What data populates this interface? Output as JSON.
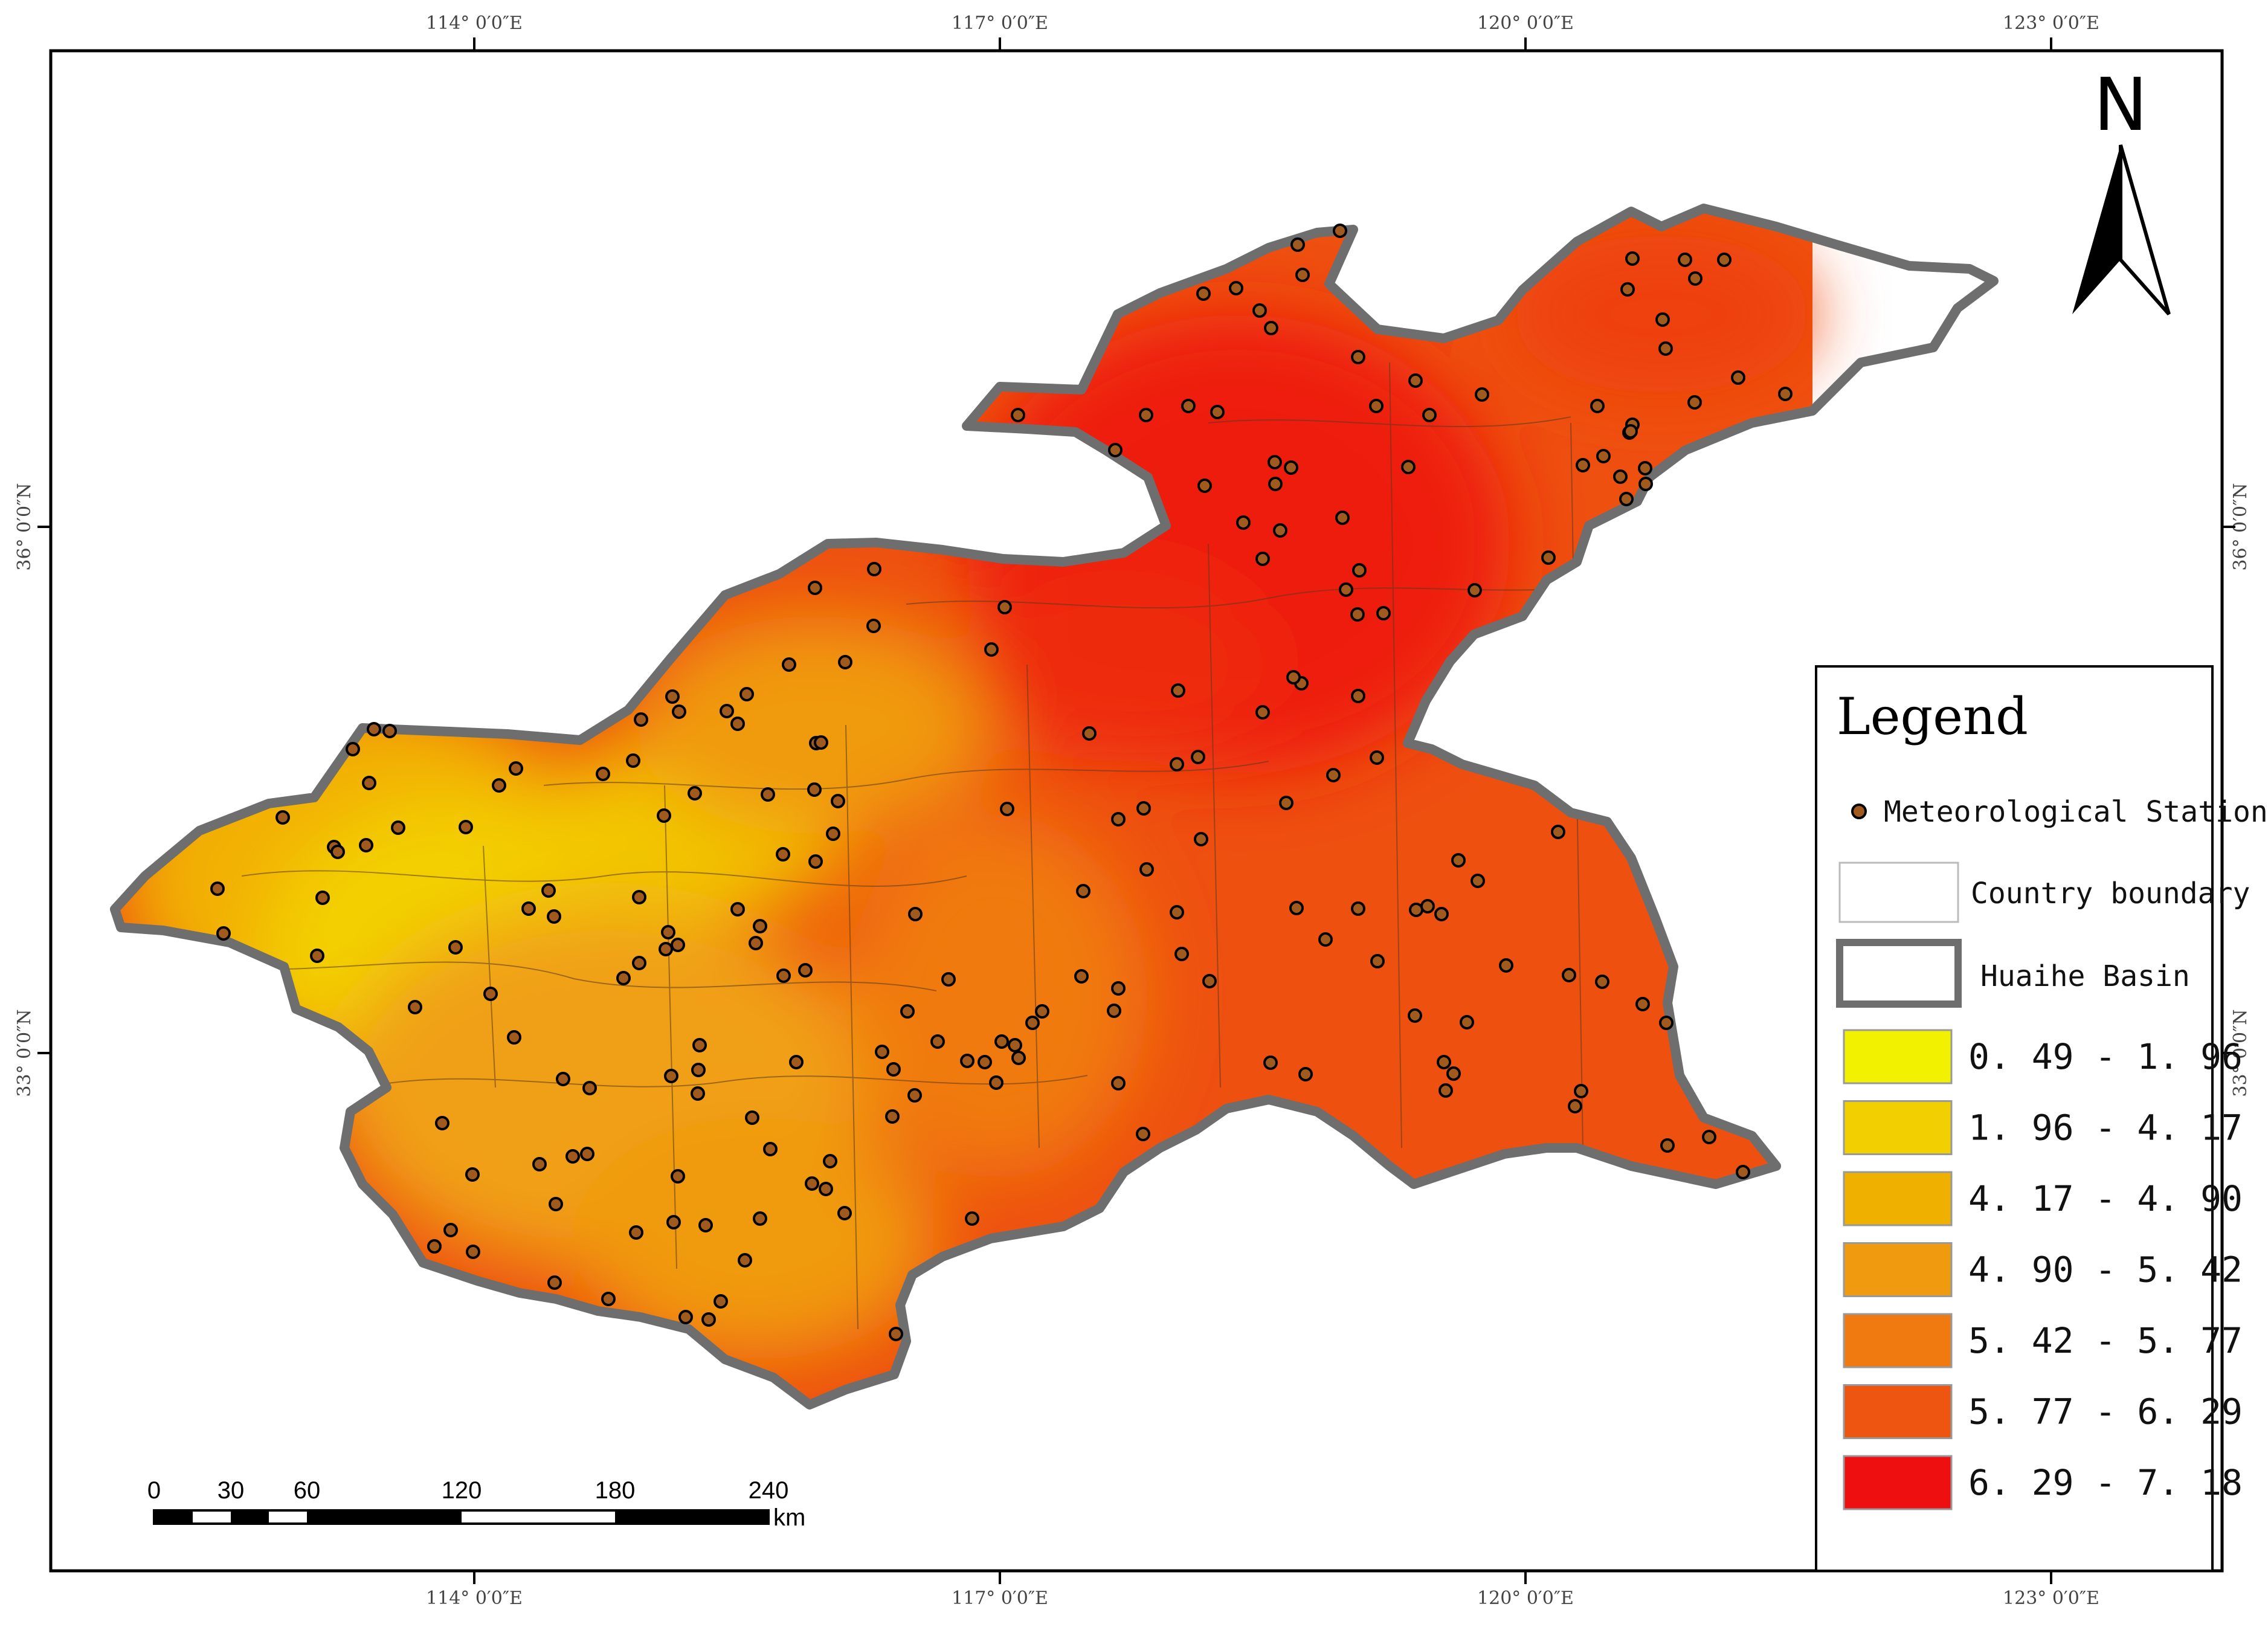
{
  "map": {
    "top_longitudes": [
      "114° 0′0″E",
      "117° 0′0″E",
      "120° 0′0″E",
      "123° 0′0″E"
    ],
    "bottom_longitudes": [
      "114° 0′0″E",
      "117° 0′0″E",
      "120° 0′0″E",
      "123° 0′0″E"
    ],
    "left_latitudes": [
      "36° 0′0″N",
      "33° 0′0″N"
    ],
    "right_latitudes": [
      "36° 0′0″N",
      "33° 0′0″N"
    ],
    "north_label": "N",
    "station_count": 214
  },
  "scale_bar": {
    "ticks": [
      "0",
      "30",
      "60",
      "120",
      "180",
      "240"
    ],
    "unit": "km"
  },
  "legend": {
    "title": "Legend",
    "station_label": "Meteorological Station",
    "country_label": "Country boundary",
    "basin_label": "Huaihe Basin",
    "classes": [
      {
        "range": "0. 49 - 1. 96",
        "color": "#f2f200"
      },
      {
        "range": "1. 96 - 4. 17",
        "color": "#f2cf00"
      },
      {
        "range": "4. 17 - 4. 90",
        "color": "#f0b000"
      },
      {
        "range": "4. 90 - 5. 42",
        "color": "#f09a10"
      },
      {
        "range": "5. 42 - 5. 77",
        "color": "#f07a10"
      },
      {
        "range": "5. 77 - 6. 29",
        "color": "#ee5510"
      },
      {
        "range": "6. 29 - 7. 18",
        "color": "#ee1010"
      }
    ],
    "station_color": "#a05a1e",
    "basin_outline_color": "#6e6e6e"
  }
}
